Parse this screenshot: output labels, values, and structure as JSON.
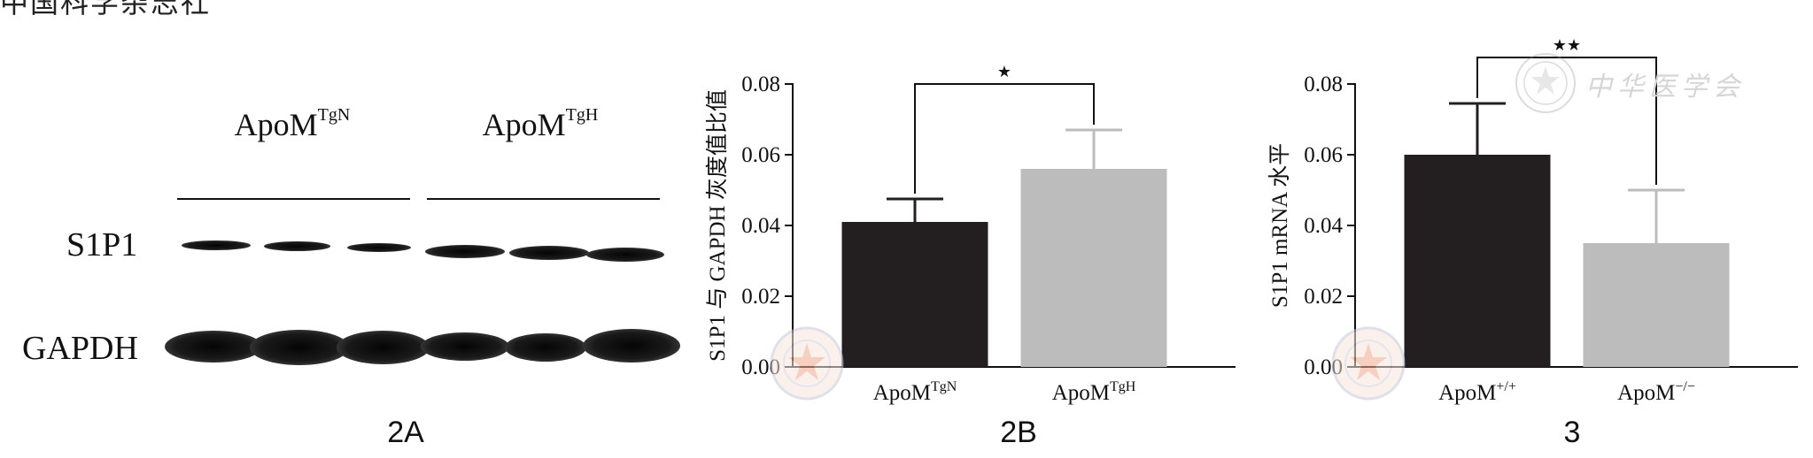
{
  "page": {
    "top_fragment": "中国科学杂志社"
  },
  "panel_2a": {
    "panel_label": "2A",
    "groups": [
      {
        "base": "ApoM",
        "sup": "TgN"
      },
      {
        "base": "ApoM",
        "sup": "TgH"
      }
    ],
    "rows": [
      "S1P1",
      "GAPDH"
    ]
  },
  "watermark": {
    "text": "中华医学会",
    "stamp_icon": "society-seal-icon"
  },
  "chart_data": [
    {
      "type": "bar",
      "panel_label": "2B",
      "ylabel": "S1P1 与 GAPDH 灰度值比值",
      "ylim": [
        0,
        0.08
      ],
      "yticks": [
        "0.00",
        "0.02",
        "0.04",
        "0.06",
        "0.08"
      ],
      "categories": [
        {
          "base": "ApoM",
          "sup": "TgN"
        },
        {
          "base": "ApoM",
          "sup": "TgH"
        }
      ],
      "values": [
        0.041,
        0.056
      ],
      "errors": [
        0.0065,
        0.011
      ],
      "colors": [
        "#231f20",
        "#bcbcbc"
      ],
      "significance": "*",
      "grid": false
    },
    {
      "type": "bar",
      "panel_label": "3",
      "ylabel": "S1P1 mRNA 水平",
      "ylim": [
        0,
        0.08
      ],
      "yticks": [
        "0.00",
        "0.02",
        "0.04",
        "0.06",
        "0.08"
      ],
      "categories": [
        {
          "base": "ApoM",
          "sup": "+/+"
        },
        {
          "base": "ApoM",
          "sup": "−/−"
        }
      ],
      "values": [
        0.06,
        0.035
      ],
      "errors": [
        0.0145,
        0.015
      ],
      "colors": [
        "#231f20",
        "#bcbcbc"
      ],
      "significance": "**",
      "grid": false
    }
  ]
}
